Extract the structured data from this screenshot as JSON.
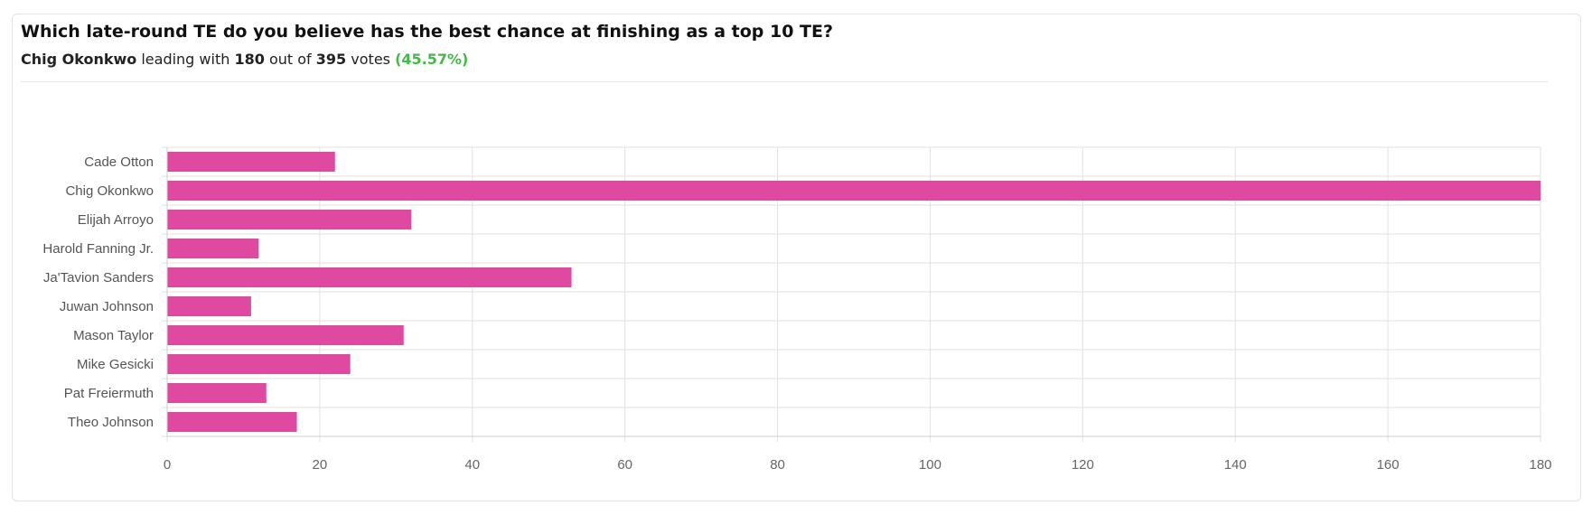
{
  "header": {
    "question": "Which late-round TE do you believe has the best chance at finishing as a top 10 TE?",
    "leader_name": "Chig Okonkwo",
    "leading_text": "leading with",
    "leader_votes": "180",
    "out_of_text": "out of",
    "total_votes": "395",
    "votes_text": "votes",
    "leader_pct": "(45.57%)"
  },
  "colors": {
    "bar": "#de4a9f",
    "pct": "#46b94a"
  },
  "chart_data": {
    "type": "bar",
    "orientation": "horizontal",
    "categories": [
      "Cade Otton",
      "Chig Okonkwo",
      "Elijah Arroyo",
      "Harold Fanning Jr.",
      "Ja'Tavion Sanders",
      "Juwan Johnson",
      "Mason Taylor",
      "Mike Gesicki",
      "Pat Freiermuth",
      "Theo Johnson"
    ],
    "values": [
      22,
      180,
      32,
      12,
      53,
      11,
      31,
      24,
      13,
      17
    ],
    "xlim": [
      0,
      180
    ],
    "xticks": [
      0,
      20,
      40,
      60,
      80,
      100,
      120,
      140,
      160,
      180
    ],
    "grid": true,
    "legend": "none"
  }
}
